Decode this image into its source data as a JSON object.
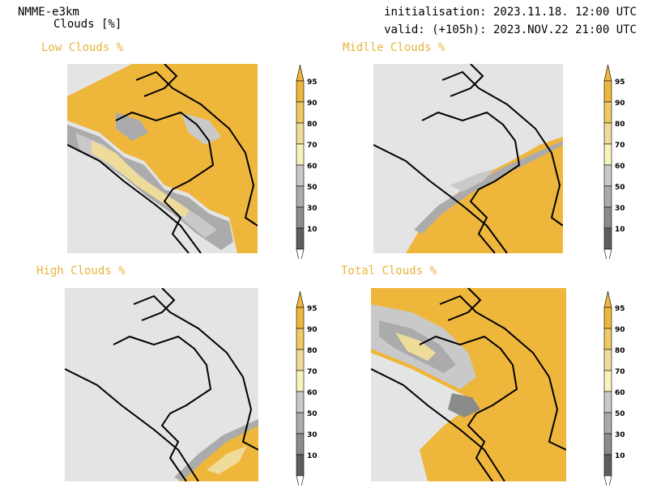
{
  "header": {
    "model": "NMME-e3km",
    "variable": "Clouds [%]",
    "initialisation": "initialisation: 2023.11.18. 12:00 UTC",
    "valid": "valid: (+105h): 2023.NOV.22 21:00 UTC"
  },
  "panels": [
    {
      "title": "Low Clouds %"
    },
    {
      "title": "Midlle Clouds %"
    },
    {
      "title": "High Clouds %"
    },
    {
      "title": "Total Clouds %"
    }
  ],
  "colorbar": {
    "levels": [
      "95",
      "90",
      "80",
      "70",
      "60",
      "50",
      "30",
      "10"
    ],
    "colors": [
      "#eeb73c",
      "#eec964",
      "#f0dc9a",
      "#f6f3bc",
      "#c9c9c9",
      "#ababab",
      "#8b8b8b",
      "#5e5e5e",
      "#ffffff"
    ]
  },
  "colors": {
    "cloud_high": "#eeb73c",
    "clear": "#e4e4e4",
    "title": "#e8b43a"
  }
}
